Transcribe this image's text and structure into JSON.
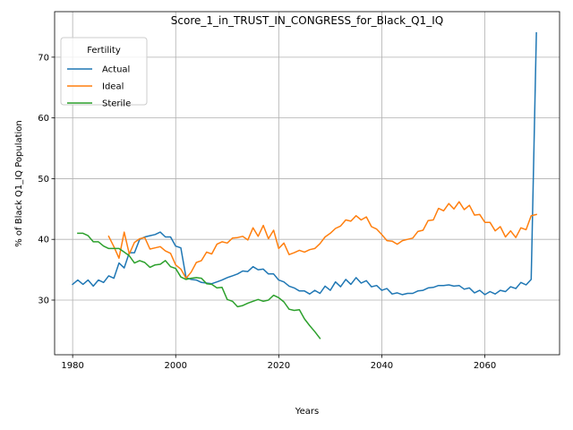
{
  "chart_data": {
    "type": "line",
    "title": "Score_1_in_TRUST_IN_CONGRESS_for_Black_Q1_IQ",
    "xlabel": "Years",
    "ylabel": "% of Black Q1_IQ Population",
    "xlim": [
      1976.5,
      2074.5
    ],
    "ylim": [
      21,
      77.5
    ],
    "xticks": [
      1980,
      2000,
      2020,
      2040,
      2060
    ],
    "yticks": [
      30,
      40,
      50,
      60,
      70
    ],
    "grid": true,
    "legend": {
      "title": "Fertility",
      "placement": "upper-left"
    },
    "series": [
      {
        "name": "Actual",
        "color": "#1f77b4",
        "x": [
          1980,
          1981,
          1982,
          1983,
          1984,
          1985,
          1986,
          1987,
          1988,
          1989,
          1990,
          1991,
          1992,
          1993,
          1994,
          1995,
          1996,
          1997,
          1998,
          1999,
          2000,
          2001,
          2002,
          2003,
          2004,
          2005,
          2006,
          2007,
          2008,
          2009,
          2010,
          2011,
          2012,
          2013,
          2014,
          2015,
          2016,
          2017,
          2018,
          2019,
          2020,
          2021,
          2022,
          2023,
          2024,
          2025,
          2026,
          2027,
          2028,
          2029,
          2030,
          2031,
          2032,
          2033,
          2034,
          2035,
          2036,
          2037,
          2038,
          2039,
          2040,
          2041,
          2042,
          2043,
          2044,
          2045,
          2046,
          2047,
          2048,
          2049,
          2050,
          2051,
          2052,
          2053,
          2054,
          2055,
          2056,
          2057,
          2058,
          2059,
          2060,
          2061,
          2062,
          2063,
          2064,
          2065,
          2066,
          2067,
          2068,
          2069,
          2070
        ],
        "values": [
          32.6,
          33.3,
          32.6,
          33.3,
          32.3,
          33.3,
          32.9,
          34.0,
          33.6,
          36.1,
          35.3,
          37.8,
          37.8,
          40.0,
          40.4,
          40.6,
          40.8,
          41.2,
          40.4,
          40.4,
          38.9,
          38.6,
          33.7,
          33.4,
          33.3,
          32.9,
          32.8,
          32.7,
          33.0,
          33.3,
          33.7,
          34.0,
          34.3,
          34.8,
          34.7,
          35.5,
          35.0,
          35.1,
          34.3,
          34.3,
          33.3,
          33.0,
          32.3,
          32.0,
          31.5,
          31.5,
          31.0,
          31.6,
          31.1,
          32.3,
          31.6,
          33.0,
          32.2,
          33.4,
          32.6,
          33.7,
          32.8,
          33.2,
          32.2,
          32.4,
          31.6,
          31.9,
          31.0,
          31.2,
          30.9,
          31.1,
          31.1,
          31.5,
          31.6,
          32.0,
          32.1,
          32.4,
          32.4,
          32.5,
          32.3,
          32.4,
          31.8,
          32.0,
          31.2,
          31.6,
          30.9,
          31.4,
          31.0,
          31.6,
          31.4,
          32.2,
          31.9,
          32.9,
          32.5,
          33.4,
          74.0
        ]
      },
      {
        "name": "Ideal",
        "color": "#ff7f0e",
        "x": [
          1987,
          1988,
          1989,
          1990,
          1991,
          1992,
          1993,
          1994,
          1995,
          1996,
          1997,
          1998,
          1999,
          2000,
          2001,
          2002,
          2003,
          2004,
          2005,
          2006,
          2007,
          2008,
          2009,
          2010,
          2011,
          2012,
          2013,
          2014,
          2015,
          2016,
          2017,
          2018,
          2019,
          2020,
          2021,
          2022,
          2023,
          2024,
          2025,
          2026,
          2027,
          2028,
          2029,
          2030,
          2031,
          2032,
          2033,
          2034,
          2035,
          2036,
          2037,
          2038,
          2039,
          2040,
          2041,
          2042,
          2043,
          2044,
          2045,
          2046,
          2047,
          2048,
          2049,
          2050,
          2051,
          2052,
          2053,
          2054,
          2055,
          2056,
          2057,
          2058,
          2059,
          2060,
          2061,
          2062,
          2063,
          2064,
          2065,
          2066,
          2067,
          2068,
          2069,
          2070
        ],
        "values": [
          40.5,
          38.8,
          36.9,
          41.2,
          37.6,
          39.5,
          40.1,
          40.3,
          38.4,
          38.6,
          38.8,
          38.1,
          37.7,
          35.8,
          35.1,
          33.6,
          34.6,
          36.2,
          36.5,
          37.9,
          37.6,
          39.2,
          39.6,
          39.4,
          40.2,
          40.3,
          40.5,
          39.9,
          41.9,
          40.5,
          42.3,
          40.1,
          41.5,
          38.5,
          39.4,
          37.5,
          37.8,
          38.2,
          37.9,
          38.3,
          38.5,
          39.3,
          40.4,
          41.0,
          41.8,
          42.2,
          43.2,
          43.0,
          43.9,
          43.2,
          43.7,
          42.1,
          41.7,
          40.8,
          39.8,
          39.7,
          39.2,
          39.8,
          40.0,
          40.2,
          41.3,
          41.5,
          43.1,
          43.2,
          45.1,
          44.7,
          45.9,
          45.0,
          46.2,
          44.9,
          45.6,
          44.0,
          44.1,
          42.8,
          42.8,
          41.4,
          42.1,
          40.4,
          41.4,
          40.3,
          41.9,
          41.6,
          43.9,
          44.1
        ]
      },
      {
        "name": "Sterile",
        "color": "#2ca02c",
        "x": [
          1981,
          1982,
          1983,
          1984,
          1985,
          1986,
          1987,
          1988,
          1989,
          1990,
          1991,
          1992,
          1993,
          1994,
          1995,
          1996,
          1997,
          1998,
          1999,
          2000,
          2001,
          2002,
          2003,
          2004,
          2005,
          2006,
          2007,
          2008,
          2009,
          2010,
          2011,
          2012,
          2013,
          2014,
          2015,
          2016,
          2017,
          2018,
          2019,
          2020,
          2021,
          2022,
          2023,
          2024,
          2025,
          2026,
          2027,
          2028
        ],
        "values": [
          41.0,
          41.0,
          40.6,
          39.6,
          39.6,
          38.9,
          38.5,
          38.5,
          38.5,
          37.9,
          37.3,
          36.1,
          36.5,
          36.2,
          35.4,
          35.8,
          35.9,
          36.5,
          35.5,
          35.2,
          33.8,
          33.4,
          33.6,
          33.7,
          33.6,
          32.7,
          32.6,
          32.0,
          32.1,
          30.1,
          29.8,
          28.9,
          29.1,
          29.5,
          29.8,
          30.1,
          29.8,
          30.0,
          30.8,
          30.4,
          29.7,
          28.5,
          28.3,
          28.4,
          26.9,
          25.8,
          24.8,
          23.7
        ]
      }
    ]
  }
}
